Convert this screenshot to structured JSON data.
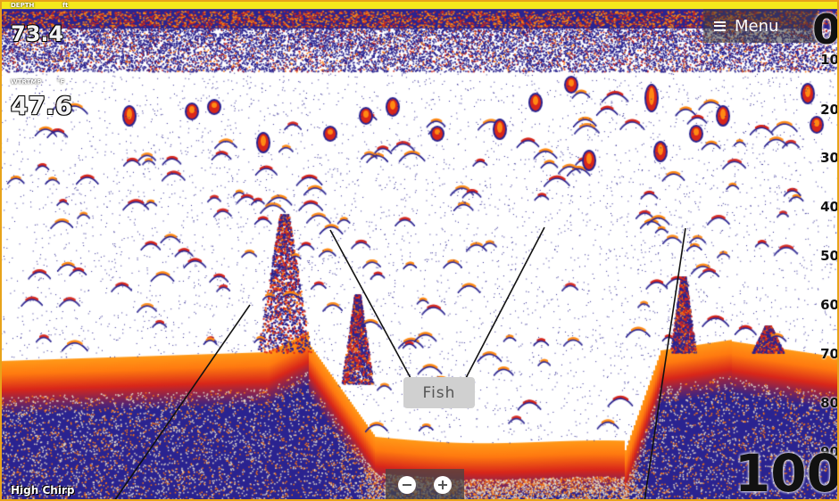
{
  "readouts": {
    "depth_label": "DEPTH",
    "depth_unit": "ft",
    "depth_value": "73.4",
    "temp_label": "WTRTMP",
    "temp_unit": "°F",
    "temp_value": "47.6"
  },
  "menu": {
    "label": "Menu",
    "icon": "hamburger-icon"
  },
  "depth_scale": {
    "range_top": "0",
    "ticks": [
      "10",
      "20",
      "30",
      "40",
      "50",
      "60",
      "70",
      "80",
      "90"
    ],
    "range_bottom": "100"
  },
  "frequency": "High Chirp",
  "zoom": {
    "out_icon": "minus-circle-icon",
    "in_icon": "plus-circle-icon"
  },
  "callout": {
    "label": "Fish"
  },
  "colors": {
    "bottom_echo": "#ff8a14",
    "strong_echo": "#c22a12",
    "weak_echo": "#2a2390",
    "background": "#ffffff",
    "frame": "#e8a31a",
    "surface_bar": "#f5e81c"
  }
}
